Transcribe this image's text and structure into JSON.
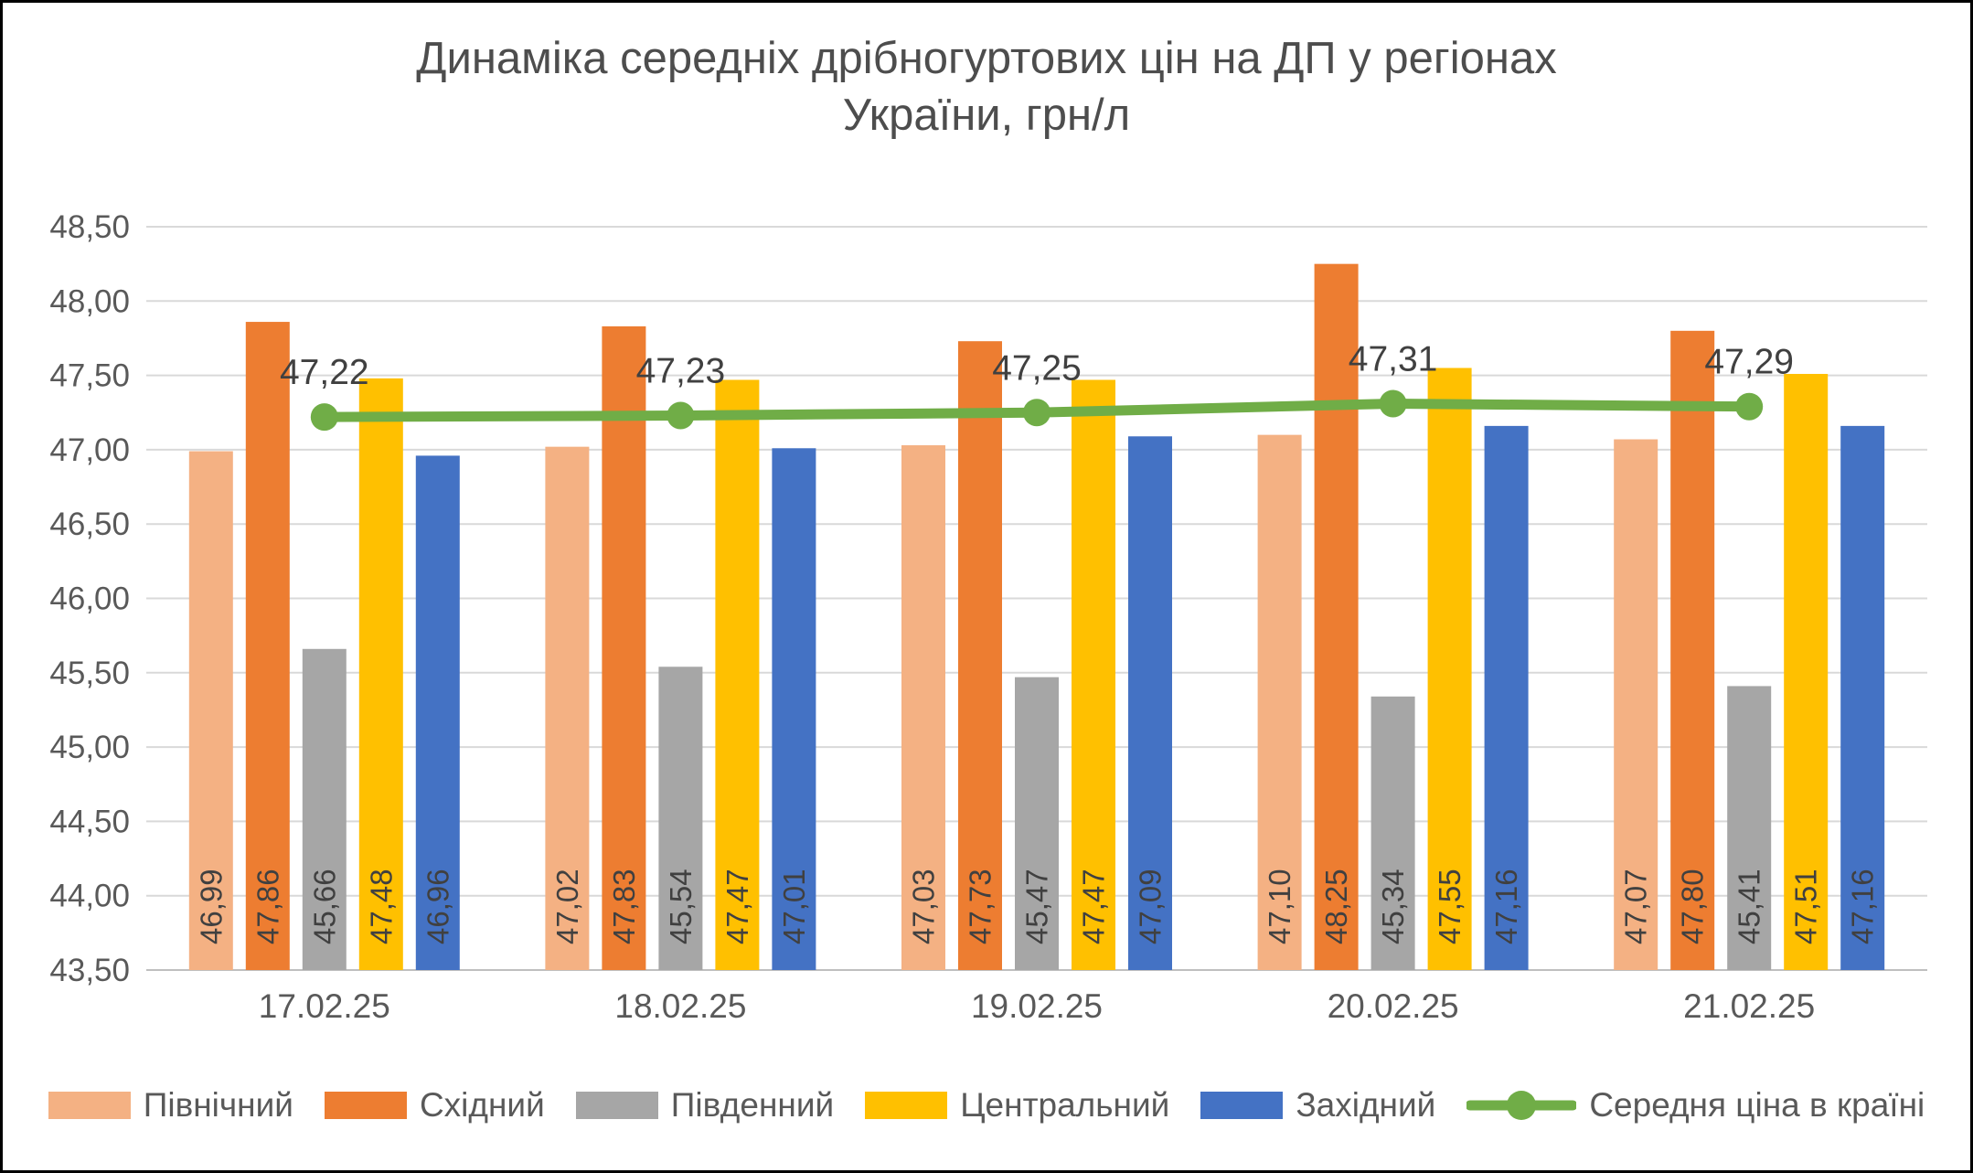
{
  "frame": {
    "background": "#FFFFFF",
    "border_color": "#000000"
  },
  "header": {
    "title_line1": "Динаміка середніх дрібногуртових цін на ДП у регіонах",
    "title_line2": "України, грн/л"
  },
  "chart_data": {
    "type": "bar",
    "subtype": "grouped-bars-with-line-overlay",
    "title": "Динаміка середніх дрібногуртових цін на ДП у регіонах України, грн/л",
    "xlabel": "",
    "ylabel": "",
    "ylim": [
      43.5,
      48.5
    ],
    "ytick_step": 0.5,
    "y_tick_labels": [
      "43,50",
      "44,00",
      "44,50",
      "45,00",
      "45,50",
      "46,00",
      "46,50",
      "47,00",
      "47,50",
      "48,00",
      "48,50"
    ],
    "grid": true,
    "legend_position": "bottom",
    "decimal_separator": ",",
    "categories": [
      "17.02.25",
      "18.02.25",
      "19.02.25",
      "20.02.25",
      "21.02.25"
    ],
    "series": [
      {
        "name": "Північний",
        "color": "#F4B183",
        "values": [
          46.99,
          47.02,
          47.03,
          47.1,
          47.07
        ]
      },
      {
        "name": "Східний",
        "color": "#ED7D31",
        "values": [
          47.86,
          47.83,
          47.73,
          48.25,
          47.8
        ]
      },
      {
        "name": "Південний",
        "color": "#A6A6A6",
        "values": [
          45.66,
          45.54,
          45.47,
          45.34,
          45.41
        ]
      },
      {
        "name": "Центральний",
        "color": "#FFC000",
        "values": [
          47.48,
          47.47,
          47.47,
          47.55,
          47.51
        ]
      },
      {
        "name": "Західний",
        "color": "#4472C4",
        "values": [
          46.96,
          47.01,
          47.09,
          47.16,
          47.16
        ]
      }
    ],
    "line_series": {
      "name": "Середня ціна в країні",
      "color": "#70AD47",
      "values": [
        47.22,
        47.23,
        47.25,
        47.31,
        47.29
      ]
    }
  },
  "styles": {
    "gridline_color": "#D9D9D9",
    "axis_line_color": "#BFBFBF",
    "tick_label_color": "#595959",
    "data_label_color": "#404040",
    "line_label_color": "#404040"
  }
}
